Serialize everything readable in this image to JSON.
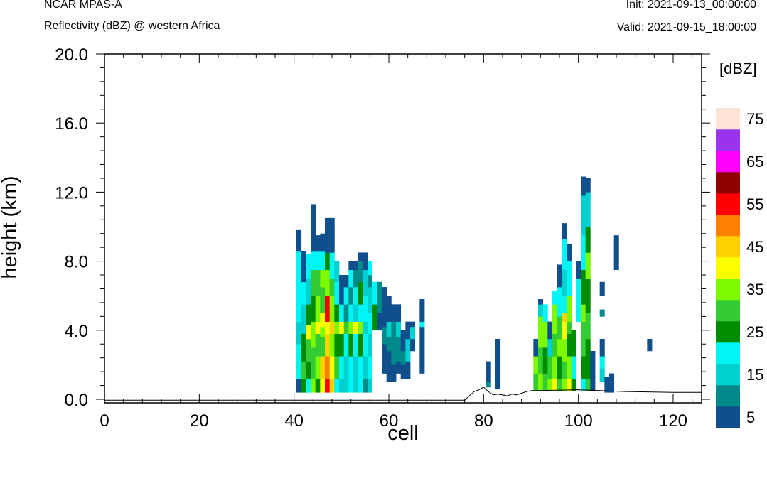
{
  "header": {
    "left_title": "NCAR MPAS-A",
    "left_subtitle": "Reflectivity (dBZ) @ western Africa",
    "right_init": "Init: 2021-09-13_00:00:00",
    "right_valid": "Valid: 2021-09-15_18:00:00"
  },
  "chart_data": {
    "type": "heatmap",
    "xlabel": "cell",
    "ylabel": "height (km)",
    "xlim": [
      0,
      126
    ],
    "ylim": [
      -0.2,
      20
    ],
    "x_ticks": [
      "0",
      "20",
      "40",
      "60",
      "80",
      "100",
      "120"
    ],
    "y_ticks": [
      "0.0",
      "4.0",
      "8.0",
      "12.0",
      "16.0",
      "20.0"
    ],
    "colorbar": {
      "units": "[dBZ]",
      "labels": [
        "5",
        "15",
        "25",
        "35",
        "45",
        "55",
        "65",
        "75"
      ],
      "colors": [
        "#104f8c",
        "#008a8a",
        "#00d0d0",
        "#00f5f5",
        "#008c00",
        "#33cc33",
        "#7df900",
        "#ffff00",
        "#ffd100",
        "#ff8000",
        "#ff0000",
        "#8c0000",
        "#ff00ff",
        "#9933ee",
        "#ffe2d8"
      ]
    },
    "cells": [
      [
        41,
        0.4,
        1.2,
        0
      ],
      [
        41,
        1.2,
        3.2,
        3
      ],
      [
        41,
        3.2,
        4.5,
        2
      ],
      [
        41,
        4.5,
        7.2,
        3
      ],
      [
        41,
        7.2,
        8.6,
        3
      ],
      [
        41,
        8.6,
        9.8,
        0
      ],
      [
        42,
        0.4,
        1.2,
        4
      ],
      [
        42,
        1.2,
        2.2,
        5
      ],
      [
        42,
        2.2,
        3.8,
        4
      ],
      [
        42,
        3.8,
        5.5,
        2
      ],
      [
        42,
        5.5,
        6.8,
        3
      ],
      [
        42,
        6.8,
        8.6,
        0
      ],
      [
        43,
        0.4,
        1.2,
        3
      ],
      [
        43,
        1.2,
        2.2,
        4
      ],
      [
        43,
        2.2,
        3.5,
        5
      ],
      [
        43,
        3.5,
        4.3,
        7
      ],
      [
        43,
        4.3,
        5.5,
        4
      ],
      [
        43,
        5.5,
        7.0,
        2
      ],
      [
        43,
        7.0,
        8.4,
        3
      ],
      [
        44,
        0.4,
        1.2,
        6
      ],
      [
        44,
        1.2,
        3.0,
        5
      ],
      [
        44,
        3.0,
        4.5,
        6
      ],
      [
        44,
        4.5,
        6.0,
        4
      ],
      [
        44,
        6.0,
        7.5,
        5
      ],
      [
        44,
        7.5,
        8.6,
        3
      ],
      [
        44,
        8.6,
        11.3,
        0
      ],
      [
        45,
        0.4,
        1.2,
        4
      ],
      [
        45,
        1.2,
        2.5,
        6
      ],
      [
        45,
        2.5,
        3.8,
        5
      ],
      [
        45,
        3.8,
        4.5,
        7
      ],
      [
        45,
        4.5,
        6.0,
        6
      ],
      [
        45,
        6.0,
        7.5,
        5
      ],
      [
        45,
        7.5,
        8.6,
        3
      ],
      [
        45,
        8.6,
        9.5,
        0
      ],
      [
        46,
        0.4,
        1.2,
        7
      ],
      [
        46,
        1.2,
        2.5,
        8
      ],
      [
        46,
        2.5,
        3.6,
        5
      ],
      [
        46,
        3.6,
        4.2,
        6
      ],
      [
        46,
        4.2,
        5.0,
        7
      ],
      [
        46,
        5.0,
        6.5,
        5
      ],
      [
        46,
        6.5,
        7.5,
        6
      ],
      [
        46,
        7.5,
        8.6,
        3
      ],
      [
        46,
        8.6,
        9.6,
        0
      ],
      [
        47,
        0.4,
        1.2,
        10
      ],
      [
        47,
        1.2,
        2.5,
        9
      ],
      [
        47,
        2.5,
        3.8,
        8
      ],
      [
        47,
        3.8,
        4.5,
        7
      ],
      [
        47,
        4.5,
        6.0,
        10
      ],
      [
        47,
        6.0,
        7.5,
        6
      ],
      [
        47,
        7.5,
        8.5,
        4
      ],
      [
        47,
        8.5,
        10.5,
        0
      ],
      [
        48,
        0.4,
        1.2,
        8
      ],
      [
        48,
        1.2,
        2.5,
        7
      ],
      [
        48,
        2.5,
        3.8,
        6
      ],
      [
        48,
        3.8,
        4.5,
        8
      ],
      [
        48,
        4.5,
        6.0,
        6
      ],
      [
        48,
        6.0,
        7.0,
        5
      ],
      [
        48,
        7.0,
        8.5,
        3
      ],
      [
        48,
        8.5,
        10.5,
        0
      ],
      [
        49,
        0.4,
        1.2,
        3
      ],
      [
        49,
        1.2,
        2.5,
        5
      ],
      [
        49,
        2.5,
        3.8,
        4
      ],
      [
        49,
        3.8,
        4.5,
        6
      ],
      [
        49,
        4.5,
        5.5,
        4
      ],
      [
        49,
        5.5,
        6.8,
        3
      ],
      [
        49,
        6.8,
        8.0,
        2
      ],
      [
        50,
        0.4,
        1.2,
        2
      ],
      [
        50,
        1.2,
        2.5,
        3
      ],
      [
        50,
        2.5,
        3.8,
        4
      ],
      [
        50,
        3.8,
        4.5,
        7
      ],
      [
        50,
        4.5,
        5.5,
        3
      ],
      [
        50,
        5.5,
        6.5,
        0
      ],
      [
        50,
        6.5,
        7.2,
        0
      ],
      [
        51,
        0.4,
        2.5,
        2
      ],
      [
        51,
        2.5,
        3.8,
        3
      ],
      [
        51,
        3.8,
        4.5,
        5
      ],
      [
        51,
        4.5,
        5.5,
        1
      ],
      [
        51,
        5.5,
        6.5,
        3
      ],
      [
        51,
        6.5,
        7.2,
        0
      ],
      [
        52,
        0.4,
        2.5,
        3
      ],
      [
        52,
        2.5,
        3.8,
        4
      ],
      [
        52,
        3.8,
        4.5,
        6
      ],
      [
        52,
        4.5,
        5.5,
        3
      ],
      [
        52,
        5.5,
        6.5,
        1
      ],
      [
        52,
        6.5,
        7.5,
        3
      ],
      [
        52,
        7.5,
        8.0,
        0
      ],
      [
        53,
        0.4,
        2.5,
        2
      ],
      [
        53,
        2.5,
        3.8,
        3
      ],
      [
        53,
        3.8,
        4.5,
        7
      ],
      [
        53,
        4.5,
        5.5,
        2
      ],
      [
        53,
        5.5,
        6.5,
        3
      ],
      [
        53,
        6.5,
        7.5,
        1
      ],
      [
        53,
        7.5,
        8.0,
        0
      ],
      [
        54,
        0.4,
        2.5,
        3
      ],
      [
        54,
        2.5,
        3.8,
        4
      ],
      [
        54,
        3.8,
        4.5,
        6
      ],
      [
        54,
        4.5,
        5.5,
        3
      ],
      [
        54,
        5.5,
        6.8,
        4
      ],
      [
        54,
        6.8,
        8.0,
        1
      ],
      [
        54,
        8.0,
        8.5,
        0
      ],
      [
        55,
        0.4,
        1.2,
        1
      ],
      [
        55,
        1.2,
        2.5,
        2
      ],
      [
        55,
        2.5,
        3.8,
        3
      ],
      [
        55,
        3.8,
        4.5,
        2
      ],
      [
        55,
        4.5,
        6.0,
        3
      ],
      [
        55,
        6.0,
        7.5,
        2
      ],
      [
        55,
        7.5,
        8.5,
        0
      ],
      [
        56,
        0.4,
        1.2,
        2
      ],
      [
        56,
        1.2,
        2.5,
        3
      ],
      [
        56,
        2.5,
        3.8,
        2
      ],
      [
        56,
        3.8,
        5.0,
        3
      ],
      [
        56,
        5.0,
        6.5,
        2
      ],
      [
        56,
        6.5,
        7.2,
        1
      ],
      [
        56,
        7.2,
        8.0,
        3
      ],
      [
        57,
        4.0,
        5.5,
        4
      ],
      [
        57,
        5.5,
        6.8,
        3
      ],
      [
        58,
        4.0,
        5.0,
        0
      ],
      [
        58,
        5.0,
        6.8,
        1
      ],
      [
        59,
        1.5,
        3.2,
        0
      ],
      [
        59,
        3.2,
        4.2,
        1
      ],
      [
        59,
        4.2,
        5.5,
        0
      ],
      [
        59,
        5.5,
        6.5,
        0
      ],
      [
        60,
        1.0,
        2.0,
        0
      ],
      [
        60,
        2.0,
        2.8,
        0
      ],
      [
        60,
        2.8,
        3.6,
        1
      ],
      [
        60,
        3.6,
        4.5,
        2
      ],
      [
        60,
        4.5,
        6.0,
        0
      ],
      [
        61,
        1.0,
        2.0,
        0
      ],
      [
        61,
        2.0,
        3.8,
        1
      ],
      [
        61,
        3.8,
        4.5,
        1
      ],
      [
        61,
        4.5,
        5.5,
        0
      ],
      [
        62,
        1.5,
        2.2,
        0
      ],
      [
        62,
        2.2,
        3.6,
        1
      ],
      [
        62,
        3.6,
        4.5,
        2
      ],
      [
        62,
        4.5,
        5.5,
        0
      ],
      [
        63,
        1.2,
        2.0,
        0
      ],
      [
        63,
        2.0,
        2.8,
        1
      ],
      [
        63,
        2.8,
        4.0,
        0
      ],
      [
        64,
        1.2,
        2.2,
        0
      ],
      [
        64,
        2.2,
        3.5,
        2
      ],
      [
        64,
        3.5,
        4.5,
        0
      ],
      [
        65,
        2.8,
        3.5,
        0
      ],
      [
        65,
        3.5,
        4.2,
        2
      ],
      [
        65,
        4.2,
        4.5,
        0
      ],
      [
        67,
        1.5,
        4.2,
        0
      ],
      [
        67,
        4.2,
        4.5,
        3
      ],
      [
        67,
        4.5,
        5.8,
        0
      ],
      [
        81,
        0.7,
        1.0,
        1
      ],
      [
        81,
        1.0,
        2.2,
        0
      ],
      [
        83,
        0.6,
        3.5,
        0
      ],
      [
        91,
        0.5,
        1.5,
        5
      ],
      [
        91,
        1.5,
        2.5,
        6
      ],
      [
        91,
        2.5,
        3.5,
        0
      ],
      [
        92,
        0.5,
        1.5,
        6
      ],
      [
        92,
        1.5,
        3.0,
        5
      ],
      [
        92,
        3.0,
        4.8,
        6
      ],
      [
        92,
        4.8,
        5.5,
        2
      ],
      [
        92,
        5.5,
        5.8,
        0
      ],
      [
        93,
        0.5,
        1.5,
        5
      ],
      [
        93,
        1.5,
        3.0,
        4
      ],
      [
        93,
        3.0,
        4.5,
        6
      ],
      [
        93,
        4.5,
        5.5,
        3
      ],
      [
        94,
        0.5,
        1.2,
        6
      ],
      [
        94,
        1.2,
        2.5,
        5
      ],
      [
        94,
        2.5,
        3.5,
        2
      ],
      [
        94,
        3.5,
        4.5,
        0
      ],
      [
        95,
        0.5,
        1.2,
        7
      ],
      [
        95,
        1.2,
        2.5,
        6
      ],
      [
        95,
        2.5,
        3.8,
        5
      ],
      [
        95,
        3.8,
        5.5,
        6
      ],
      [
        95,
        5.5,
        6.3,
        3
      ],
      [
        96,
        0.5,
        1.2,
        5
      ],
      [
        96,
        1.2,
        2.5,
        4
      ],
      [
        96,
        2.5,
        3.5,
        6
      ],
      [
        96,
        3.5,
        4.8,
        5
      ],
      [
        96,
        4.8,
        6.5,
        3
      ],
      [
        96,
        6.5,
        7.8,
        0
      ],
      [
        97,
        0.5,
        1.2,
        6
      ],
      [
        97,
        1.2,
        2.2,
        5
      ],
      [
        97,
        2.2,
        3.5,
        6
      ],
      [
        97,
        3.5,
        4.5,
        7
      ],
      [
        97,
        4.5,
        5.0,
        8
      ],
      [
        97,
        5.0,
        6.0,
        3
      ],
      [
        97,
        6.0,
        7.5,
        2
      ],
      [
        97,
        7.5,
        9.3,
        3
      ],
      [
        97,
        9.3,
        10.2,
        0
      ],
      [
        98,
        0.5,
        1.2,
        7
      ],
      [
        98,
        1.2,
        2.5,
        6
      ],
      [
        98,
        2.5,
        3.8,
        4
      ],
      [
        98,
        3.8,
        4.5,
        5
      ],
      [
        98,
        4.5,
        6.0,
        6
      ],
      [
        98,
        6.0,
        8.0,
        3
      ],
      [
        98,
        8.0,
        9.0,
        0
      ],
      [
        99,
        0.5,
        1.2,
        4
      ],
      [
        99,
        1.2,
        2.5,
        3
      ],
      [
        99,
        2.5,
        4.0,
        4
      ],
      [
        100,
        4.5,
        7.0,
        3
      ],
      [
        100,
        7.0,
        8.0,
        0
      ],
      [
        101,
        0.5,
        1.2,
        3
      ],
      [
        101,
        1.2,
        2.5,
        4
      ],
      [
        101,
        2.5,
        4.5,
        5
      ],
      [
        101,
        4.5,
        5.5,
        6
      ],
      [
        101,
        5.5,
        7.5,
        4
      ],
      [
        101,
        7.5,
        9.5,
        3
      ],
      [
        101,
        9.5,
        11.8,
        2
      ],
      [
        101,
        11.8,
        12.9,
        0
      ],
      [
        102,
        0.5,
        1.2,
        5
      ],
      [
        102,
        1.2,
        3.5,
        4
      ],
      [
        102,
        3.5,
        5.0,
        5
      ],
      [
        102,
        5.0,
        7.0,
        4
      ],
      [
        102,
        7.0,
        8.5,
        6
      ],
      [
        102,
        8.5,
        10.0,
        4
      ],
      [
        102,
        10.0,
        12.0,
        2
      ],
      [
        102,
        12.0,
        12.8,
        0
      ],
      [
        103,
        0.5,
        2.8,
        0
      ],
      [
        105,
        1.0,
        1.8,
        2
      ],
      [
        105,
        1.8,
        2.5,
        3
      ],
      [
        105,
        2.5,
        3.5,
        0
      ],
      [
        105,
        4.8,
        5.2,
        1
      ],
      [
        105,
        6.0,
        6.8,
        0
      ],
      [
        106,
        0.4,
        1.3,
        0
      ],
      [
        107,
        0.4,
        1.5,
        0
      ],
      [
        108,
        7.5,
        9.5,
        0
      ],
      [
        115,
        2.8,
        3.5,
        0
      ]
    ],
    "terrain": [
      [
        0,
        -0.05
      ],
      [
        40,
        -0.05
      ],
      [
        76,
        -0.05
      ],
      [
        77,
        0.2
      ],
      [
        78,
        0.45
      ],
      [
        79,
        0.55
      ],
      [
        80,
        0.7
      ],
      [
        81,
        0.45
      ],
      [
        82,
        0.25
      ],
      [
        83,
        0.3
      ],
      [
        84,
        0.25
      ],
      [
        85,
        0.2
      ],
      [
        86,
        0.3
      ],
      [
        87,
        0.25
      ],
      [
        88,
        0.35
      ],
      [
        89,
        0.45
      ],
      [
        90,
        0.5
      ],
      [
        100,
        0.55
      ],
      [
        110,
        0.45
      ],
      [
        120,
        0.4
      ],
      [
        126,
        0.4
      ]
    ]
  }
}
